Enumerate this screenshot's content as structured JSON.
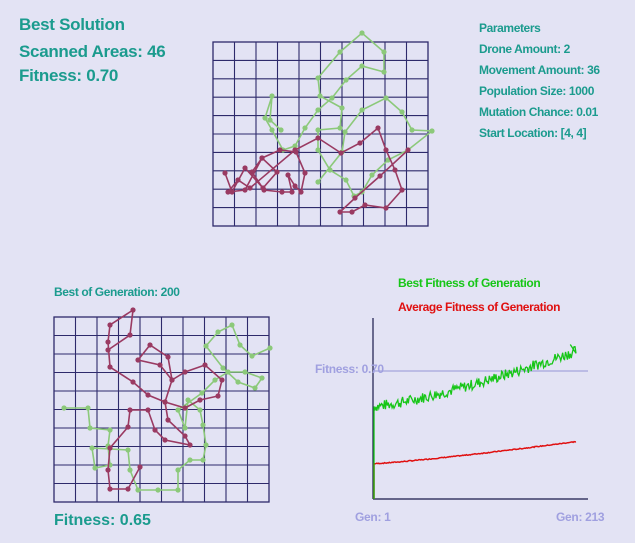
{
  "best_solution": {
    "title": "Best Solution",
    "scanned": "Scanned Areas: 46",
    "fitness": "Fitness: 0.70"
  },
  "parameters": {
    "heading": "Parameters",
    "items": [
      "Drone Amount: 2",
      "Movement Amount: 36",
      "Population Size: 1000",
      "Mutation Chance: 0.01",
      "Start Location: [4, 4]"
    ]
  },
  "generation": {
    "label": "Best of Generation: 200",
    "fitness": "Fitness: 0.65"
  },
  "colors": {
    "background": "#e3e3f4",
    "grid": "#2e2a6b",
    "drone_green": "#8cc97a",
    "drone_maroon": "#9a3a62",
    "text_teal": "#1b9b8e",
    "best_line": "#17c617",
    "avg_line": "#e01010",
    "axis_label": "#a0a0e0"
  },
  "chart_data": {
    "type": "line",
    "title": "",
    "xlabel": "",
    "ylabel": "",
    "series": [
      {
        "name": "Best Fitness of Generation",
        "color": "#17c617",
        "start": 0.42,
        "end": 0.7
      },
      {
        "name": "Average Fitness of Generation",
        "color": "#e01010",
        "start": 0.16,
        "end": 0.26
      }
    ],
    "x_start_label": "Gen: 1",
    "x_end_label": "Gen: 213",
    "x_range": [
      1,
      213
    ],
    "reference_line": {
      "label": "Fitness: 0.70",
      "value": 0.7
    },
    "ylim": [
      0,
      0.82
    ],
    "grid": false
  }
}
